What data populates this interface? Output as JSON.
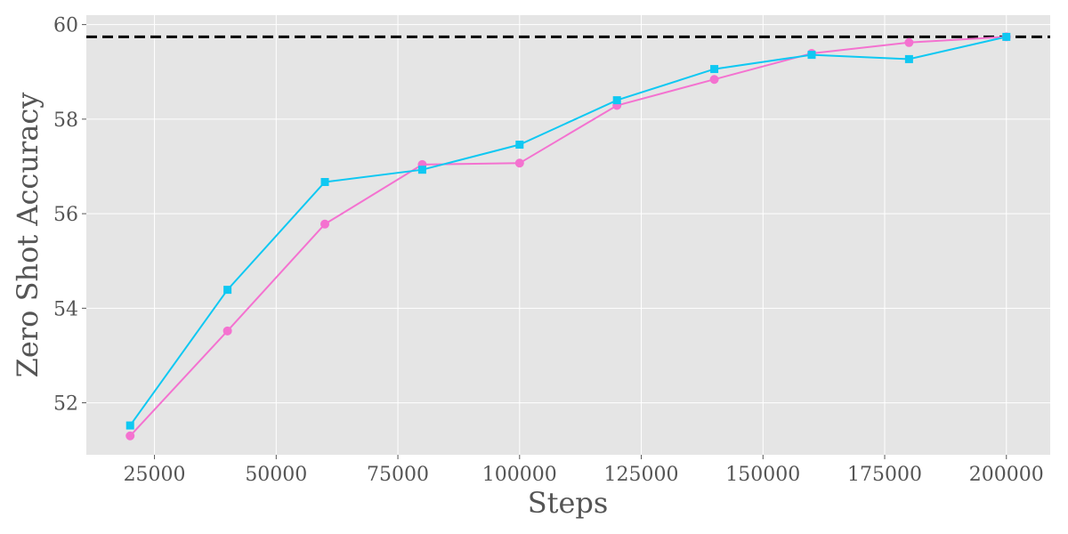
{
  "chart_data": {
    "type": "line",
    "title": "",
    "xlabel": "Steps",
    "ylabel": "Zero Shot Accuracy",
    "xlim": [
      11000,
      209000
    ],
    "ylim": [
      50.9,
      60.2
    ],
    "xticks": [
      25000,
      50000,
      75000,
      100000,
      125000,
      150000,
      175000,
      200000
    ],
    "yticks": [
      52,
      54,
      56,
      58,
      60
    ],
    "grid": true,
    "legend": "none",
    "x": [
      20000,
      40000,
      60000,
      80000,
      100000,
      120000,
      140000,
      160000,
      180000,
      200000
    ],
    "series": [
      {
        "color": "#f472d0",
        "marker": "circle",
        "values": [
          51.3,
          53.52,
          55.78,
          57.04,
          57.07,
          58.29,
          58.84,
          59.39,
          59.62,
          59.74
        ]
      },
      {
        "color": "#0fc8f2",
        "marker": "square",
        "values": [
          51.52,
          54.39,
          56.67,
          56.93,
          57.46,
          58.4,
          59.06,
          59.36,
          59.27,
          59.74
        ]
      }
    ],
    "reference_line": {
      "y": 59.74,
      "color": "#000000",
      "style": "dashed"
    },
    "colors": {
      "background": "#e5e5e5",
      "grid": "#ffffff",
      "text": "#555555"
    }
  }
}
